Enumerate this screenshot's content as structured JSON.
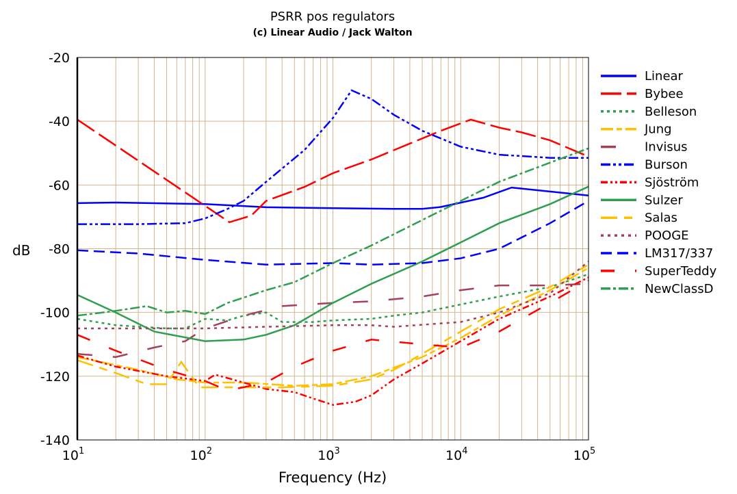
{
  "chart_data": {
    "type": "line",
    "title": "PSRR pos regulators",
    "subtitle": "(c) Linear Audio / Jack Walton",
    "xlabel": "Frequency (Hz)",
    "ylabel": "dB",
    "xscale": "log",
    "xlim": [
      10,
      100000
    ],
    "ylim": [
      -140,
      -20
    ],
    "x_ticks": [
      {
        "base": "10",
        "exp": "1"
      },
      {
        "base": "10",
        "exp": "2"
      },
      {
        "base": "10",
        "exp": "3"
      },
      {
        "base": "10",
        "exp": "4"
      },
      {
        "base": "10",
        "exp": "5"
      }
    ],
    "y_ticks": [
      "-20",
      "-40",
      "-60",
      "-80",
      "-100",
      "-120",
      "-140"
    ],
    "grid": true,
    "grid_color": "#d2b48c",
    "legend_position": "right",
    "series": [
      {
        "name": "Linear",
        "color": "#0000ff",
        "dash": "",
        "x": [
          10,
          20,
          100,
          300,
          1000,
          3000,
          5000,
          7000,
          15000,
          25000,
          100000
        ],
        "y": [
          -65.7,
          -65.5,
          -66,
          -67,
          -67.3,
          -67.5,
          -67.5,
          -66.9,
          -64,
          -60.8,
          -63.3
        ]
      },
      {
        "name": "Bybee",
        "color": "#ff0000",
        "dash": "30,8",
        "x": [
          10,
          155,
          230,
          300,
          600,
          1000,
          2000,
          4000,
          7000,
          12000,
          20000,
          30000,
          50000,
          100000
        ],
        "y": [
          -39.5,
          -71.7,
          -69.6,
          -65,
          -60.6,
          -56.3,
          -52,
          -47,
          -43,
          -39.5,
          -42,
          -43.5,
          -46,
          -51.1
        ]
      },
      {
        "name": "Belleson",
        "color": "#2e9e50",
        "dash": "4,5",
        "x": [
          10,
          20,
          50,
          70,
          100,
          150,
          200,
          300,
          400,
          700,
          1000,
          2000,
          3000,
          5000,
          10000,
          20000,
          50000,
          100000
        ],
        "y": [
          -102,
          -104,
          -105,
          -105,
          -102,
          -102.5,
          -101,
          -100,
          -103,
          -103,
          -102.5,
          -102,
          -101,
          -100,
          -97.5,
          -95,
          -92,
          -88
        ]
      },
      {
        "name": "Jung",
        "color": "#ffc000",
        "dash": "18,5,8,5",
        "x": [
          10,
          30,
          60,
          100,
          200,
          500,
          1000,
          2000,
          5000,
          10000,
          20000,
          50000,
          100000
        ],
        "y": [
          -114,
          -118,
          -121,
          -122,
          -122,
          -123,
          -122.5,
          -120,
          -114,
          -108,
          -101,
          -93,
          -86
        ]
      },
      {
        "name": "Invisus",
        "color": "#a5405a",
        "dash": "22,30",
        "x": [
          10,
          20,
          40,
          70,
          100,
          200,
          400,
          1000,
          2000,
          5000,
          10000,
          20000,
          50000,
          100000
        ],
        "y": [
          -113,
          -114,
          -111,
          -109,
          -105,
          -101,
          -98,
          -97,
          -96.5,
          -95,
          -93,
          -91.5,
          -91.5,
          -91
        ]
      },
      {
        "name": "Burson",
        "color": "#0000ff",
        "dash": "14,4,4,4,4,4",
        "x": [
          10,
          30,
          70,
          100,
          150,
          200,
          300,
          600,
          1000,
          1400,
          2000,
          3000,
          5000,
          10000,
          20000,
          50000,
          100000
        ],
        "y": [
          -72.3,
          -72.3,
          -72,
          -70.5,
          -67.5,
          -65,
          -59,
          -49,
          -39,
          -30.3,
          -33,
          -38,
          -43,
          -48,
          -50.5,
          -51.5,
          -51.5
        ]
      },
      {
        "name": "Sjöström",
        "color": "#ff0000",
        "dash": "10,4,3,4,3,4",
        "x": [
          10,
          20,
          50,
          100,
          120,
          200,
          300,
          500,
          700,
          1000,
          1500,
          2000,
          3000,
          5000,
          10000,
          20000,
          50000,
          100000
        ],
        "y": [
          -113.5,
          -117,
          -120,
          -121.5,
          -119.5,
          -122,
          -124,
          -125,
          -127,
          -129,
          -128,
          -126,
          -121,
          -116,
          -109,
          -102,
          -95,
          -89
        ]
      },
      {
        "name": "Sulzer",
        "color": "#2e9e50",
        "dash": "",
        "x": [
          10,
          20,
          40,
          100,
          200,
          300,
          500,
          1000,
          2000,
          5000,
          10000,
          20000,
          50000,
          100000
        ],
        "y": [
          -94.5,
          -100,
          -106,
          -109,
          -108.5,
          -107,
          -104,
          -97,
          -91,
          -84,
          -78,
          -72,
          -66,
          -60.5
        ]
      },
      {
        "name": "Salas",
        "color": "#ffc000",
        "dash": "24,10,12,10",
        "x": [
          10,
          20,
          35,
          50,
          65,
          90,
          200,
          400,
          1000,
          2000,
          3000,
          5000,
          10000,
          20000,
          50000,
          100000
        ],
        "y": [
          -115,
          -119,
          -122.5,
          -122.5,
          -115.5,
          -123.5,
          -123.5,
          -123.5,
          -123,
          -121,
          -118,
          -113,
          -106,
          -99,
          -92,
          -85
        ]
      },
      {
        "name": "POOGE",
        "color": "#a5405a",
        "dash": "4,6",
        "x": [
          10,
          30,
          100,
          300,
          1000,
          2000,
          3000,
          10000,
          20000,
          50000,
          100000
        ],
        "y": [
          -105,
          -105,
          -105,
          -104.5,
          -104,
          -104,
          -104.5,
          -103,
          -100,
          -94,
          -84
        ]
      },
      {
        "name": "LM317/337",
        "color": "#0000ff",
        "dash": "16,8",
        "x": [
          10,
          30,
          100,
          300,
          1000,
          2000,
          5000,
          10000,
          20000,
          50000,
          100000
        ],
        "y": [
          -80.5,
          -81.5,
          -83.5,
          -85,
          -84.5,
          -85,
          -84.5,
          -83,
          -80,
          -72,
          -65
        ]
      },
      {
        "name": "SuperTeddy",
        "color": "#ff0000",
        "dash": "20,30",
        "x": [
          10,
          20,
          50,
          100,
          150,
          300,
          500,
          1000,
          2000,
          5000,
          10000,
          20000,
          50000,
          100000
        ],
        "y": [
          -107,
          -112,
          -118,
          -121.5,
          -124.5,
          -122,
          -117,
          -112,
          -108.5,
          -110,
          -111,
          -106,
          -97,
          -90
        ]
      },
      {
        "name": "NewClassD",
        "color": "#2e9e50",
        "dash": "14,4,4,4",
        "x": [
          10,
          20,
          35,
          50,
          70,
          100,
          150,
          300,
          500,
          1000,
          2000,
          5000,
          10000,
          20000,
          50000,
          100000
        ],
        "y": [
          -101,
          -99.5,
          -98,
          -100,
          -99.5,
          -100.5,
          -97,
          -93,
          -90.5,
          -84.5,
          -79,
          -71,
          -65,
          -59,
          -53,
          -48.5
        ]
      }
    ]
  }
}
